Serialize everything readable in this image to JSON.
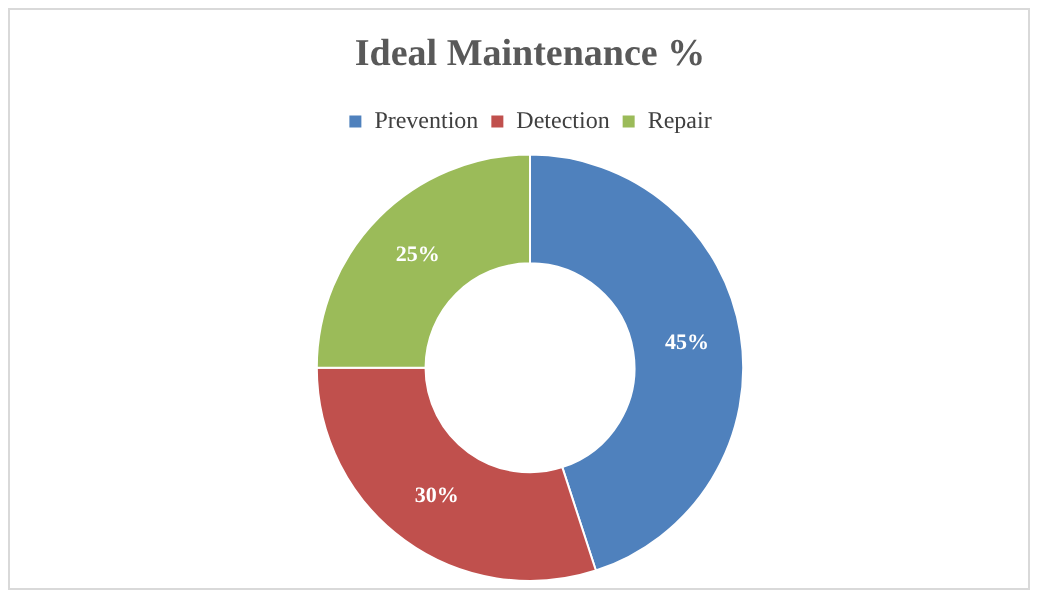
{
  "chart_data": {
    "type": "donut",
    "title": "Ideal Maintenance %",
    "categories": [
      "Prevention",
      "Detection",
      "Repair"
    ],
    "values": [
      45,
      30,
      25
    ],
    "colors": [
      "#4f81bd",
      "#c0504d",
      "#9bbb59"
    ],
    "value_labels": [
      "45%",
      "30%",
      "25%"
    ],
    "legend": "top"
  }
}
